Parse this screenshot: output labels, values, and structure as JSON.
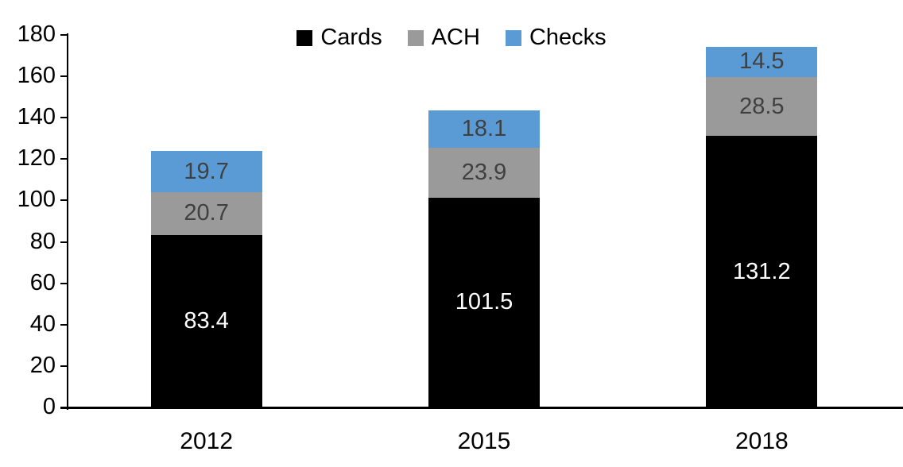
{
  "chart_data": {
    "type": "bar",
    "stacked": true,
    "title": "",
    "xlabel": "",
    "ylabel": "",
    "categories": [
      "2012",
      "2015",
      "2018"
    ],
    "series": [
      {
        "name": "Cards",
        "values": [
          83.4,
          101.5,
          131.2
        ],
        "color": "#000000",
        "label_color": "#ffffff"
      },
      {
        "name": "ACH",
        "values": [
          20.7,
          23.9,
          28.5
        ],
        "color": "#9a9a9a",
        "label_color": "#404040"
      },
      {
        "name": "Checks",
        "values": [
          19.7,
          18.1,
          14.5
        ],
        "color": "#5b9bd5",
        "label_color": "#404040"
      }
    ],
    "ylim": [
      0,
      180
    ],
    "yticks": [
      0,
      20,
      40,
      60,
      80,
      100,
      120,
      140,
      160,
      180
    ],
    "grid": false,
    "legend_position": "top",
    "axis_color": "#000000",
    "text_color": "#000000"
  }
}
